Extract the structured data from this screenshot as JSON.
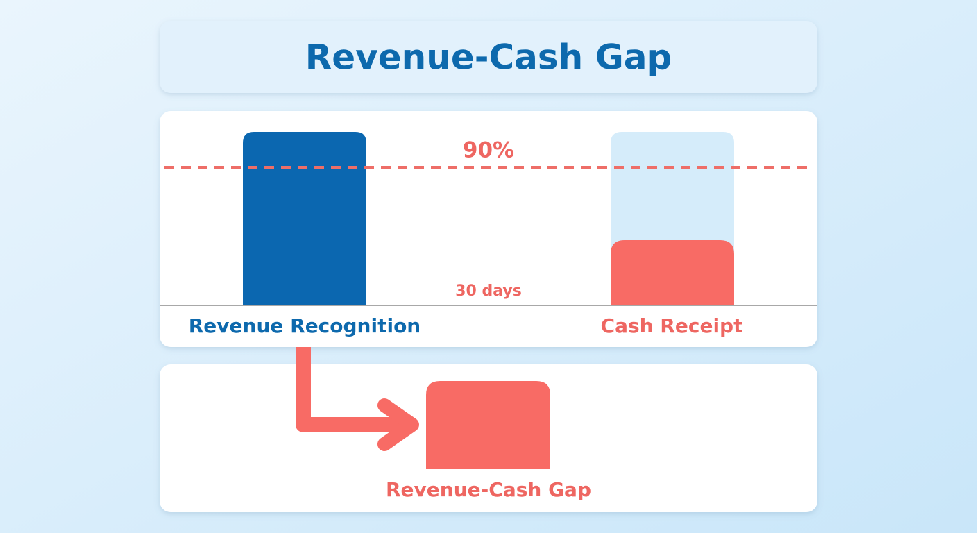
{
  "header": {
    "title": "Revenue-Cash Gap"
  },
  "comparison": {
    "threshold_label": "90%",
    "delay_label": "30 days",
    "left_label": "Revenue Recognition",
    "right_label": "Cash Receipt"
  },
  "gap": {
    "label": "Revenue-Cash Gap"
  }
}
